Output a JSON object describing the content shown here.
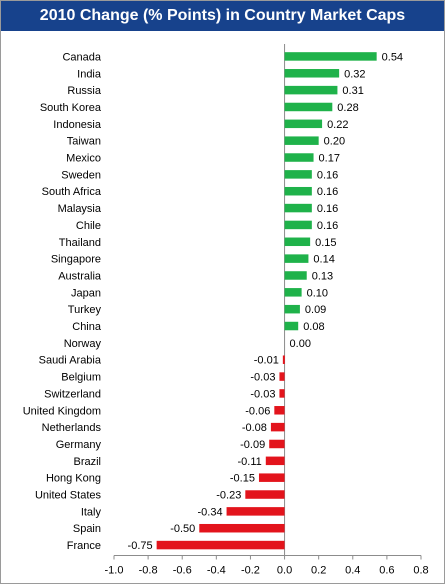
{
  "chart_data": {
    "type": "bar",
    "orientation": "horizontal",
    "title": "2010 Change (% Points) in Country Market Caps",
    "xlabel": "",
    "ylabel": "",
    "xlim": [
      -1.0,
      0.8
    ],
    "xticks": [
      -1.0,
      -0.8,
      -0.6,
      -0.4,
      -0.2,
      0.0,
      0.2,
      0.4,
      0.6,
      0.8
    ],
    "xtick_labels": [
      "-1.0",
      "-0.8",
      "-0.6",
      "-0.4",
      "-0.2",
      "0.0",
      "0.2",
      "0.4",
      "0.6",
      "0.8"
    ],
    "grid": false,
    "legend": "none",
    "colors": {
      "positive": "#1fb24a",
      "negative": "#e3141c",
      "title_bg": "#17428c",
      "title_text": "#ffffff"
    },
    "categories": [
      "Canada",
      "India",
      "Russia",
      "South Korea",
      "Indonesia",
      "Taiwan",
      "Mexico",
      "Sweden",
      "South Africa",
      "Malaysia",
      "Chile",
      "Thailand",
      "Singapore",
      "Australia",
      "Japan",
      "Turkey",
      "China",
      "Norway",
      "Saudi Arabia",
      "Belgium",
      "Switzerland",
      "United Kingdom",
      "Netherlands",
      "Germany",
      "Brazil",
      "Hong Kong",
      "United States",
      "Italy",
      "Spain",
      "France"
    ],
    "values": [
      0.54,
      0.32,
      0.31,
      0.28,
      0.22,
      0.2,
      0.17,
      0.16,
      0.16,
      0.16,
      0.16,
      0.15,
      0.14,
      0.13,
      0.1,
      0.09,
      0.08,
      0.0,
      -0.01,
      -0.03,
      -0.03,
      -0.06,
      -0.08,
      -0.09,
      -0.11,
      -0.15,
      -0.23,
      -0.34,
      -0.5,
      -0.75
    ],
    "value_labels": [
      "0.54",
      "0.32",
      "0.31",
      "0.28",
      "0.22",
      "0.20",
      "0.17",
      "0.16",
      "0.16",
      "0.16",
      "0.16",
      "0.15",
      "0.14",
      "0.13",
      "0.10",
      "0.09",
      "0.08",
      "0.00",
      "-0.01",
      "-0.03",
      "-0.03",
      "-0.06",
      "-0.08",
      "-0.09",
      "-0.11",
      "-0.15",
      "-0.23",
      "-0.34",
      "-0.50",
      "-0.75"
    ]
  }
}
